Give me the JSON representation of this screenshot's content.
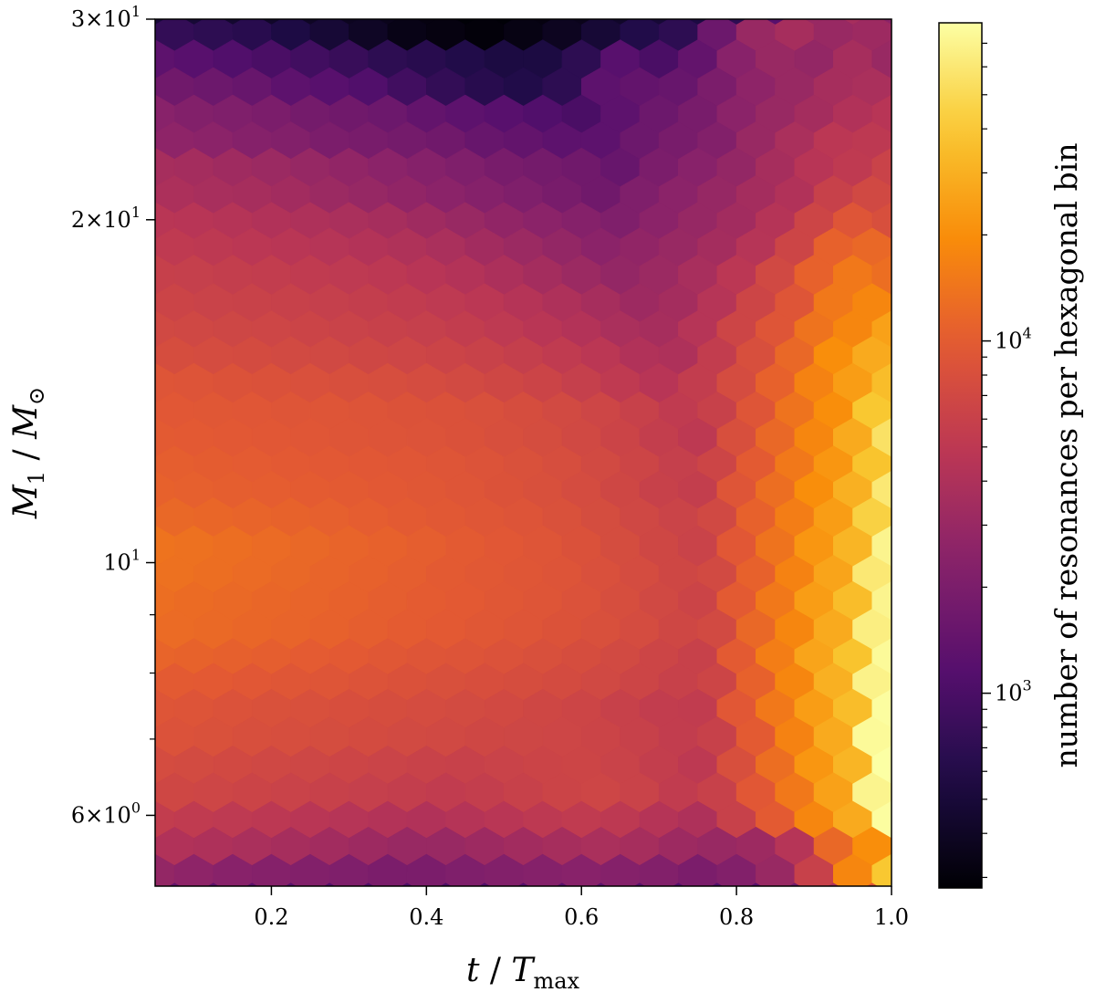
{
  "chart_data": {
    "type": "heatmap",
    "subtype": "hexbin",
    "colormap": "inferno",
    "x_axis": {
      "label_italic": "t",
      "label_separator": " / ",
      "label_base": "T",
      "label_subscript": "max",
      "scale": "linear",
      "range": [
        0.05,
        1.0
      ],
      "ticks": [
        0.2,
        0.4,
        0.6,
        0.8,
        1.0
      ],
      "tick_labels": [
        "0.2",
        "0.4",
        "0.6",
        "0.8",
        "1.0"
      ]
    },
    "y_axis": {
      "label_italic": "M",
      "label_subscript": "1",
      "label_separator": " / ",
      "label_base": "M",
      "label_subscript_symbol": "⊙",
      "scale": "log",
      "range": [
        5.2,
        30
      ],
      "major_ticks": [
        {
          "value": 30,
          "label_mantissa": "3",
          "label_times": "×",
          "label_base": "10",
          "label_exponent": "1"
        },
        {
          "value": 20,
          "label_mantissa": "2",
          "label_times": "×",
          "label_base": "10",
          "label_exponent": "1"
        },
        {
          "value": 10,
          "label_mantissa": "",
          "label_times": "",
          "label_base": "10",
          "label_exponent": "1"
        },
        {
          "value": 6,
          "label_mantissa": "6",
          "label_times": "×",
          "label_base": "10",
          "label_exponent": "0"
        }
      ],
      "minor_ticks": [
        7,
        8,
        9,
        40
      ]
    },
    "colorbar": {
      "label": "number of resonances per hexagonal bin",
      "scale": "log",
      "range": [
        280,
        80000
      ],
      "major_ticks": [
        {
          "value": 1000,
          "label_base": "10",
          "label_exponent": "3"
        },
        {
          "value": 10000,
          "label_base": "10",
          "label_exponent": "4"
        }
      ],
      "minor_ticks": [
        300,
        400,
        500,
        600,
        700,
        800,
        900,
        2000,
        3000,
        4000,
        5000,
        6000,
        7000,
        8000,
        9000,
        20000,
        30000,
        40000,
        50000,
        60000,
        70000
      ]
    },
    "hexbin_grid": {
      "x_centers_even_rows": [
        0.05,
        0.1,
        0.15,
        0.2,
        0.25,
        0.3,
        0.35,
        0.4,
        0.45,
        0.5,
        0.55,
        0.6,
        0.65,
        0.7,
        0.75,
        0.8,
        0.85,
        0.9,
        0.95,
        1.0
      ],
      "x_centers_odd_rows": [
        0.075,
        0.125,
        0.175,
        0.225,
        0.275,
        0.325,
        0.375,
        0.425,
        0.475,
        0.525,
        0.575,
        0.625,
        0.675,
        0.725,
        0.775,
        0.825,
        0.875,
        0.925,
        0.975
      ],
      "rows": [
        {
          "m1": 30.6,
          "counts": [
            500,
            480,
            450,
            420,
            400,
            380,
            360,
            320,
            290,
            290,
            320,
            360,
            420,
            480,
            550,
            700,
            1200,
            3000,
            3600,
            2500
          ]
        },
        {
          "m1": 29.0,
          "counts": [
            750,
            700,
            650,
            560,
            480,
            400,
            340,
            320,
            300,
            330,
            380,
            480,
            600,
            700,
            1600,
            3000,
            3600,
            3000,
            3200
          ]
        },
        {
          "m1": 27.5,
          "counts": [
            1300,
            1200,
            1100,
            1000,
            900,
            800,
            700,
            650,
            600,
            550,
            550,
            700,
            1200,
            1000,
            1400,
            2400,
            3000,
            2800,
            3600,
            3000
          ]
        },
        {
          "m1": 26.0,
          "counts": [
            1700,
            1600,
            1500,
            1300,
            1200,
            1100,
            900,
            750,
            650,
            600,
            700,
            1300,
            1400,
            1500,
            2000,
            2600,
            3000,
            3600,
            3800
          ]
        },
        {
          "m1": 24.6,
          "counts": [
            2400,
            2200,
            2100,
            2000,
            1800,
            1700,
            1600,
            1400,
            1300,
            1200,
            1100,
            1000,
            1300,
            1600,
            1900,
            2500,
            3000,
            3500,
            4200,
            4600
          ]
        },
        {
          "m1": 23.3,
          "counts": [
            2600,
            2500,
            2300,
            2200,
            2000,
            1900,
            1800,
            1700,
            1500,
            1400,
            1300,
            1300,
            1600,
            1900,
            2200,
            3000,
            3800,
            4800,
            5000
          ]
        },
        {
          "m1": 22.1,
          "counts": [
            3600,
            3500,
            3300,
            3100,
            2900,
            2700,
            2500,
            2300,
            2100,
            1900,
            1800,
            1700,
            1500,
            2000,
            2400,
            2800,
            3600,
            4600,
            5200,
            6200
          ]
        },
        {
          "m1": 20.9,
          "counts": [
            3900,
            3700,
            3600,
            3400,
            3100,
            2900,
            2700,
            2500,
            2300,
            2100,
            1900,
            1700,
            2100,
            2500,
            2900,
            3500,
            4200,
            6000,
            7000
          ]
        },
        {
          "m1": 19.8,
          "counts": [
            4700,
            4600,
            4400,
            4200,
            4000,
            3800,
            3600,
            3300,
            3000,
            2700,
            2500,
            2300,
            2100,
            2500,
            2900,
            3400,
            4400,
            6500,
            9000,
            8000
          ]
        },
        {
          "m1": 18.8,
          "counts": [
            5200,
            5000,
            4800,
            4700,
            4500,
            4300,
            4100,
            3800,
            3400,
            3100,
            2800,
            2500,
            2700,
            3000,
            3500,
            4500,
            6500,
            11000,
            12000
          ]
        },
        {
          "m1": 17.8,
          "counts": [
            5900,
            5800,
            5600,
            5500,
            5300,
            5100,
            4900,
            4600,
            4300,
            3900,
            3500,
            3100,
            2800,
            3100,
            3700,
            4800,
            7000,
            11000,
            15000,
            13000
          ]
        },
        {
          "m1": 16.8,
          "counts": [
            6400,
            6200,
            6100,
            6000,
            5800,
            5600,
            5400,
            5100,
            4800,
            4400,
            4000,
            3600,
            3200,
            3500,
            4500,
            6500,
            9000,
            15000,
            18000
          ]
        },
        {
          "m1": 15.9,
          "counts": [
            7000,
            6900,
            6700,
            6600,
            6400,
            6200,
            6000,
            5800,
            5500,
            5100,
            4700,
            4300,
            3800,
            3600,
            4500,
            6500,
            9000,
            14000,
            18000,
            25000
          ]
        },
        {
          "m1": 15.1,
          "counts": [
            7700,
            7500,
            7400,
            7200,
            7000,
            6800,
            6600,
            6400,
            6100,
            5700,
            5300,
            4800,
            4200,
            4000,
            5500,
            8000,
            12000,
            20000,
            28000
          ]
        },
        {
          "m1": 14.3,
          "counts": [
            9000,
            8800,
            8600,
            8400,
            8200,
            8000,
            7800,
            7500,
            7200,
            6800,
            6400,
            5800,
            5200,
            4600,
            5500,
            7500,
            11000,
            17000,
            24000,
            35000
          ]
        },
        {
          "m1": 13.5,
          "counts": [
            9500,
            9400,
            9300,
            9100,
            9000,
            8800,
            8600,
            8400,
            8100,
            7700,
            7200,
            6600,
            6000,
            5300,
            6000,
            9000,
            14000,
            20000,
            40000
          ]
        },
        {
          "m1": 12.8,
          "counts": [
            10000,
            9800,
            9700,
            9500,
            9300,
            9100,
            8900,
            8700,
            8400,
            8000,
            7600,
            7000,
            6400,
            5600,
            5000,
            8000,
            12000,
            18000,
            28000,
            55000
          ]
        },
        {
          "m1": 12.1,
          "counts": [
            10500,
            10300,
            10100,
            9900,
            9700,
            9500,
            9300,
            9000,
            8700,
            8300,
            7800,
            7200,
            6500,
            5800,
            6500,
            10000,
            15000,
            22000,
            38000
          ]
        },
        {
          "m1": 11.5,
          "counts": [
            11000,
            10800,
            10600,
            10400,
            10200,
            10000,
            9700,
            9400,
            9000,
            8600,
            8100,
            7500,
            6800,
            6000,
            5600,
            9000,
            13000,
            20000,
            30000,
            60000
          ]
        },
        {
          "m1": 10.9,
          "counts": [
            12000,
            11800,
            11500,
            11200,
            10800,
            10400,
            10000,
            9600,
            9200,
            8800,
            8300,
            7600,
            6900,
            6300,
            7000,
            11000,
            16000,
            24000,
            45000
          ]
        },
        {
          "m1": 10.3,
          "counts": [
            14000,
            13500,
            13000,
            12500,
            12000,
            11500,
            11000,
            10500,
            10000,
            9500,
            9000,
            8400,
            7600,
            6800,
            6200,
            9500,
            14000,
            22000,
            32000,
            70000
          ]
        },
        {
          "m1": 9.7,
          "counts": [
            13500,
            13000,
            12500,
            12000,
            11500,
            11000,
            10500,
            10000,
            9600,
            9200,
            8800,
            8200,
            7500,
            6800,
            7200,
            11000,
            17000,
            26000,
            60000
          ]
        },
        {
          "m1": 9.2,
          "counts": [
            13000,
            12600,
            12200,
            11800,
            11400,
            11000,
            10600,
            10200,
            9800,
            9400,
            9000,
            8500,
            7800,
            7000,
            6400,
            10000,
            15000,
            24000,
            35000,
            70000
          ]
        },
        {
          "m1": 8.7,
          "counts": [
            12500,
            12200,
            11800,
            11400,
            11000,
            10600,
            10200,
            9800,
            9400,
            9000,
            8600,
            8100,
            7500,
            6800,
            7200,
            12000,
            18000,
            28000,
            65000
          ]
        },
        {
          "m1": 8.2,
          "counts": [
            11500,
            11200,
            10900,
            10500,
            10100,
            9800,
            9400,
            9100,
            8800,
            8500,
            8100,
            7700,
            7200,
            6500,
            6000,
            10000,
            16000,
            26000,
            38000,
            75000
          ]
        },
        {
          "m1": 7.8,
          "counts": [
            10000,
            9800,
            9500,
            9200,
            9000,
            8700,
            8400,
            8100,
            7900,
            7700,
            7400,
            7000,
            6500,
            6000,
            6500,
            11000,
            18000,
            30000,
            68000
          ]
        },
        {
          "m1": 7.4,
          "counts": [
            9000,
            8800,
            8500,
            8300,
            8100,
            7900,
            7700,
            7500,
            7300,
            7100,
            6800,
            6500,
            6000,
            5500,
            5400,
            9500,
            15000,
            24000,
            35000,
            78000
          ]
        },
        {
          "m1": 7.0,
          "counts": [
            8500,
            8300,
            8000,
            7800,
            7600,
            7400,
            7200,
            7000,
            6800,
            6700,
            6600,
            6400,
            6000,
            5500,
            6000,
            10000,
            17000,
            28000,
            75000
          ]
        },
        {
          "m1": 6.6,
          "counts": [
            7500,
            7300,
            7100,
            6900,
            6700,
            6500,
            6300,
            6100,
            6000,
            6200,
            6400,
            6500,
            6200,
            5600,
            5000,
            8000,
            13000,
            22000,
            32000,
            80000
          ]
        },
        {
          "m1": 6.25,
          "counts": [
            6800,
            6600,
            6400,
            6200,
            6000,
            5800,
            5600,
            5400,
            5600,
            6000,
            6400,
            6600,
            6200,
            5400,
            6000,
            9500,
            15000,
            25000,
            70000
          ]
        },
        {
          "m1": 5.9,
          "counts": [
            5500,
            5300,
            5100,
            4900,
            4700,
            4500,
            4300,
            4200,
            4400,
            4700,
            5000,
            5300,
            5000,
            4400,
            4000,
            6000,
            10000,
            18000,
            28000,
            78000
          ]
        },
        {
          "m1": 5.6,
          "counts": [
            4200,
            4000,
            3800,
            3600,
            3400,
            3200,
            3000,
            3000,
            3200,
            3400,
            3600,
            3800,
            3600,
            3200,
            3000,
            3200,
            4500,
            12000,
            20000
          ]
        },
        {
          "m1": 5.3,
          "counts": [
            2800,
            2600,
            2400,
            2300,
            2200,
            2100,
            2000,
            2000,
            2100,
            2200,
            2300,
            2400,
            2300,
            2200,
            2000,
            2200,
            3000,
            6000,
            18000,
            40000
          ]
        },
        {
          "m1": 5.0,
          "counts": [
            1400,
            1300,
            1250,
            1200,
            1150,
            1100,
            1050,
            1050,
            1100,
            1150,
            1200,
            1250,
            1200,
            1150,
            1100,
            1200,
            1800,
            4000,
            9000
          ]
        }
      ]
    }
  }
}
